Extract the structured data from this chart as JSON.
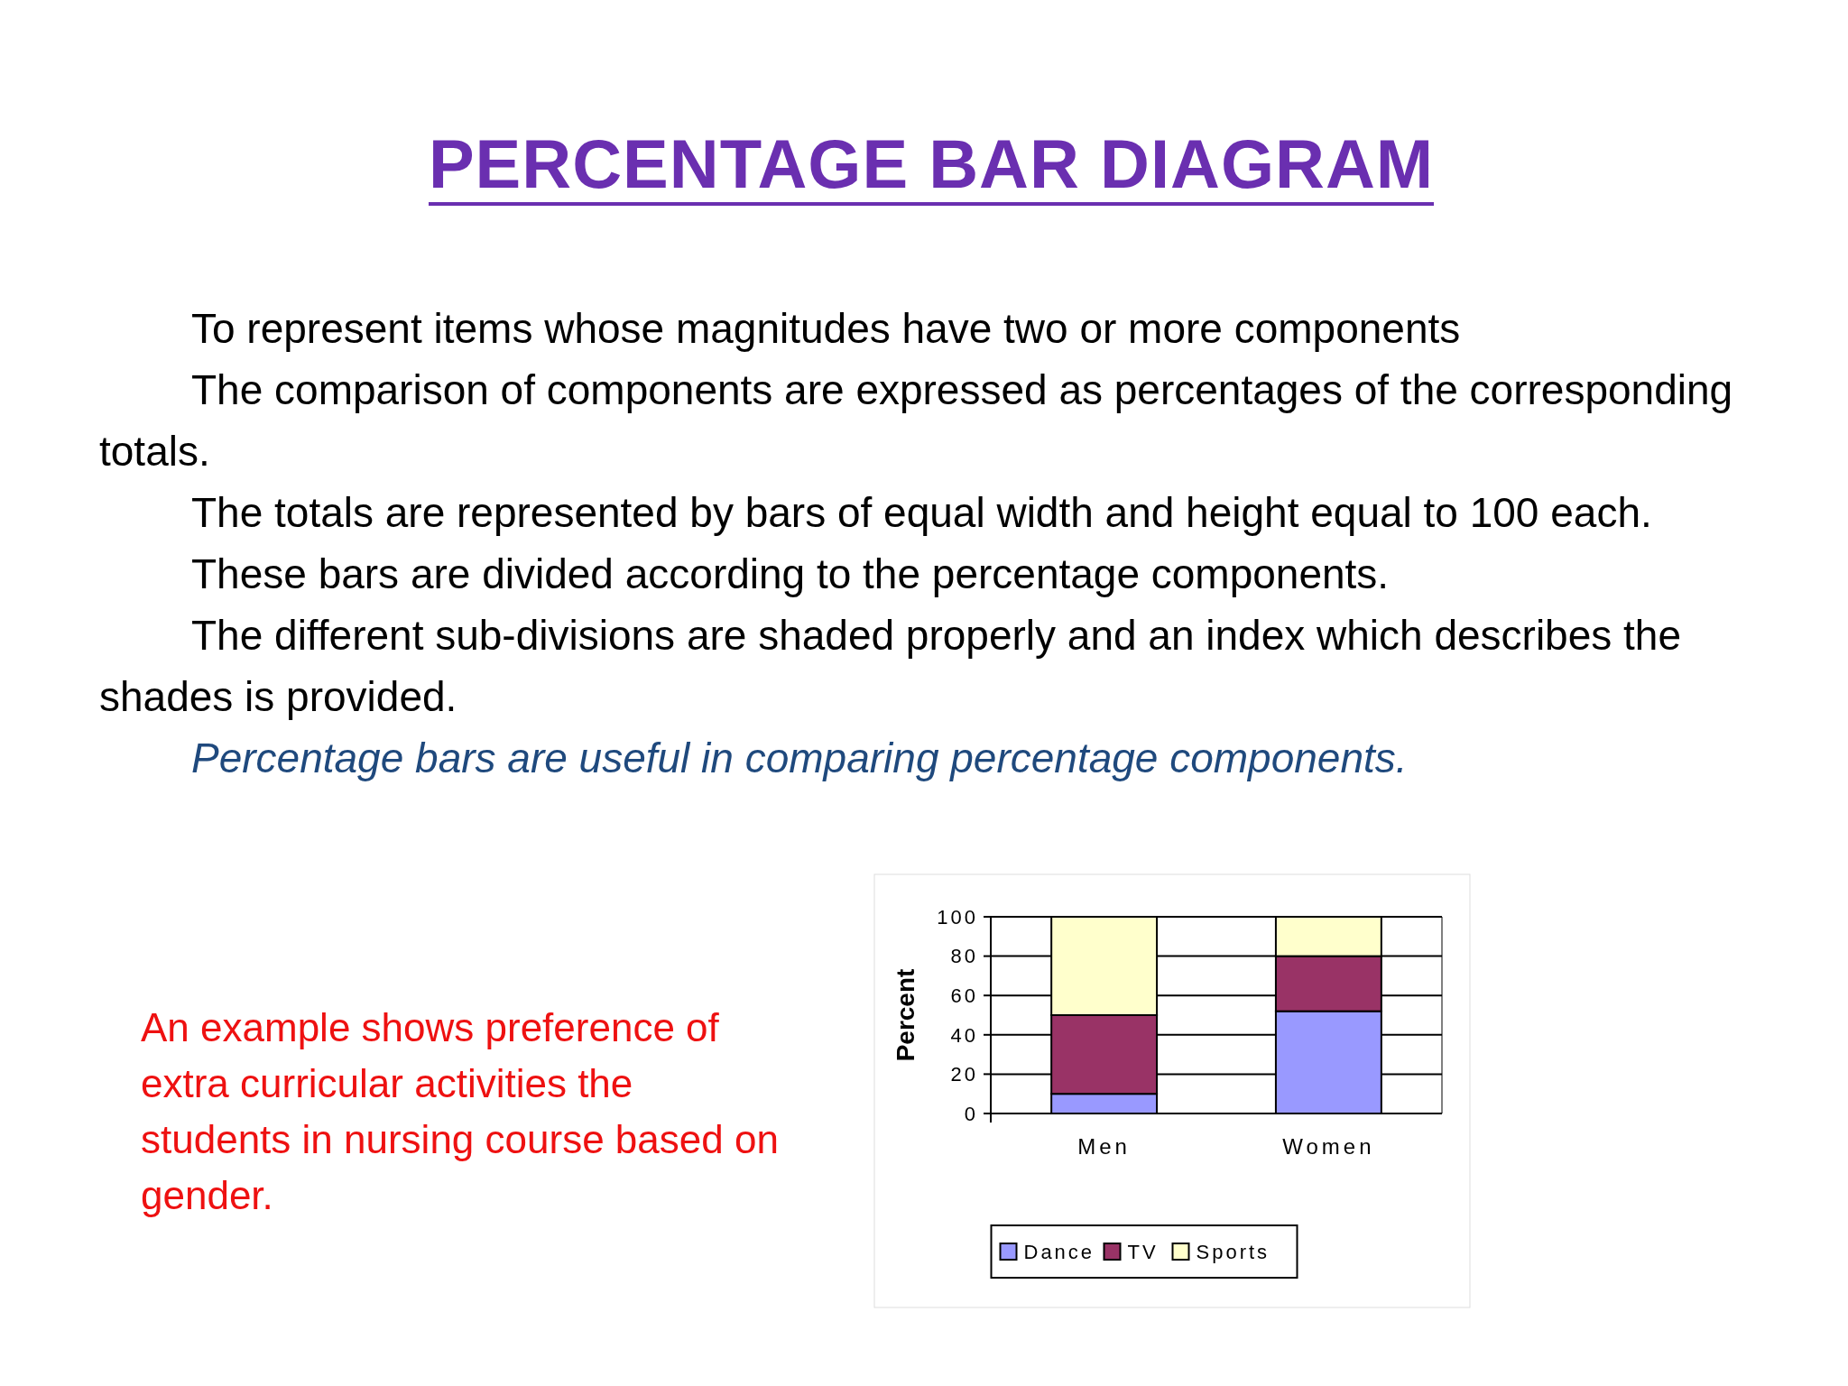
{
  "chart_data": {
    "type": "bar",
    "title": "PERCENTAGE BAR DIAGRAM",
    "ylabel": "Percent",
    "annotations": [
      "To represent items whose magnitudes have two or more components",
      "The  comparison of components are expressed as percentages of the corresponding totals.",
      "The totals are represented by bars of equal width and height equal to 100 each.",
      "These bars are divided according to the percentage components.",
      "The different sub-divisions are shaded properly and an index which describes the shades is provided.",
      "Percentage bars are useful in comparing percentage components.",
      "An example  shows preference of extra curricular activities  the students in nursing course based on gender."
    ],
    "categories": [
      "Men",
      "Women"
    ],
    "series": [
      {
        "name": "Dance",
        "color": "#9999ff",
        "values": [
          10,
          52
        ]
      },
      {
        "name": "TV",
        "color": "#993366",
        "values": [
          40,
          28
        ]
      },
      {
        "name": "Sports",
        "color": "#ffffcc",
        "values": [
          50,
          20
        ]
      }
    ],
    "stacked": true,
    "ylim": [
      0,
      100
    ],
    "yticks": [
      0,
      20,
      40,
      60,
      80,
      100
    ],
    "grid": "y",
    "legend": "bottom"
  }
}
